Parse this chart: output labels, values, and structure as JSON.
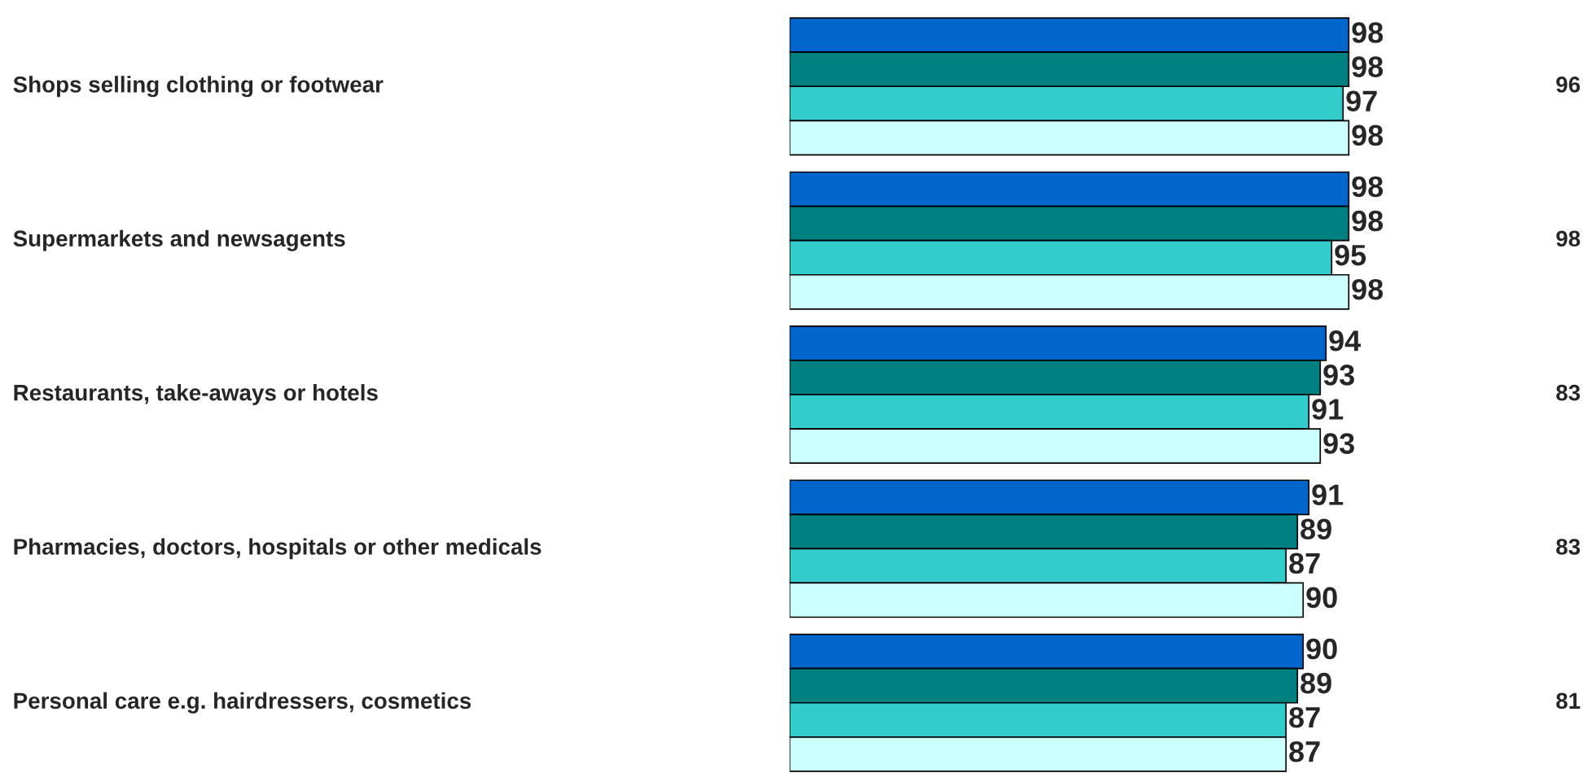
{
  "chart_data": {
    "type": "bar",
    "orientation": "horizontal",
    "categories": [
      "Shops selling clothing or footwear",
      "Supermarkets and newsagents",
      "Restaurants, take-aways or hotels",
      "Pharmacies, doctors, hospitals or other medicals",
      "Personal care e.g. hairdressers, cosmetics"
    ],
    "series": [
      {
        "color": "#0066cc",
        "values": [
          98,
          98,
          94,
          91,
          90
        ]
      },
      {
        "color": "#008080",
        "values": [
          98,
          98,
          93,
          89,
          89
        ]
      },
      {
        "color": "#33cccc",
        "values": [
          97,
          95,
          91,
          87,
          87
        ]
      },
      {
        "color": "#ccffff",
        "values": [
          98,
          98,
          93,
          90,
          87
        ]
      }
    ],
    "data_labels": true,
    "annotations": [
      "96",
      "98",
      "83",
      "83",
      "81"
    ]
  }
}
